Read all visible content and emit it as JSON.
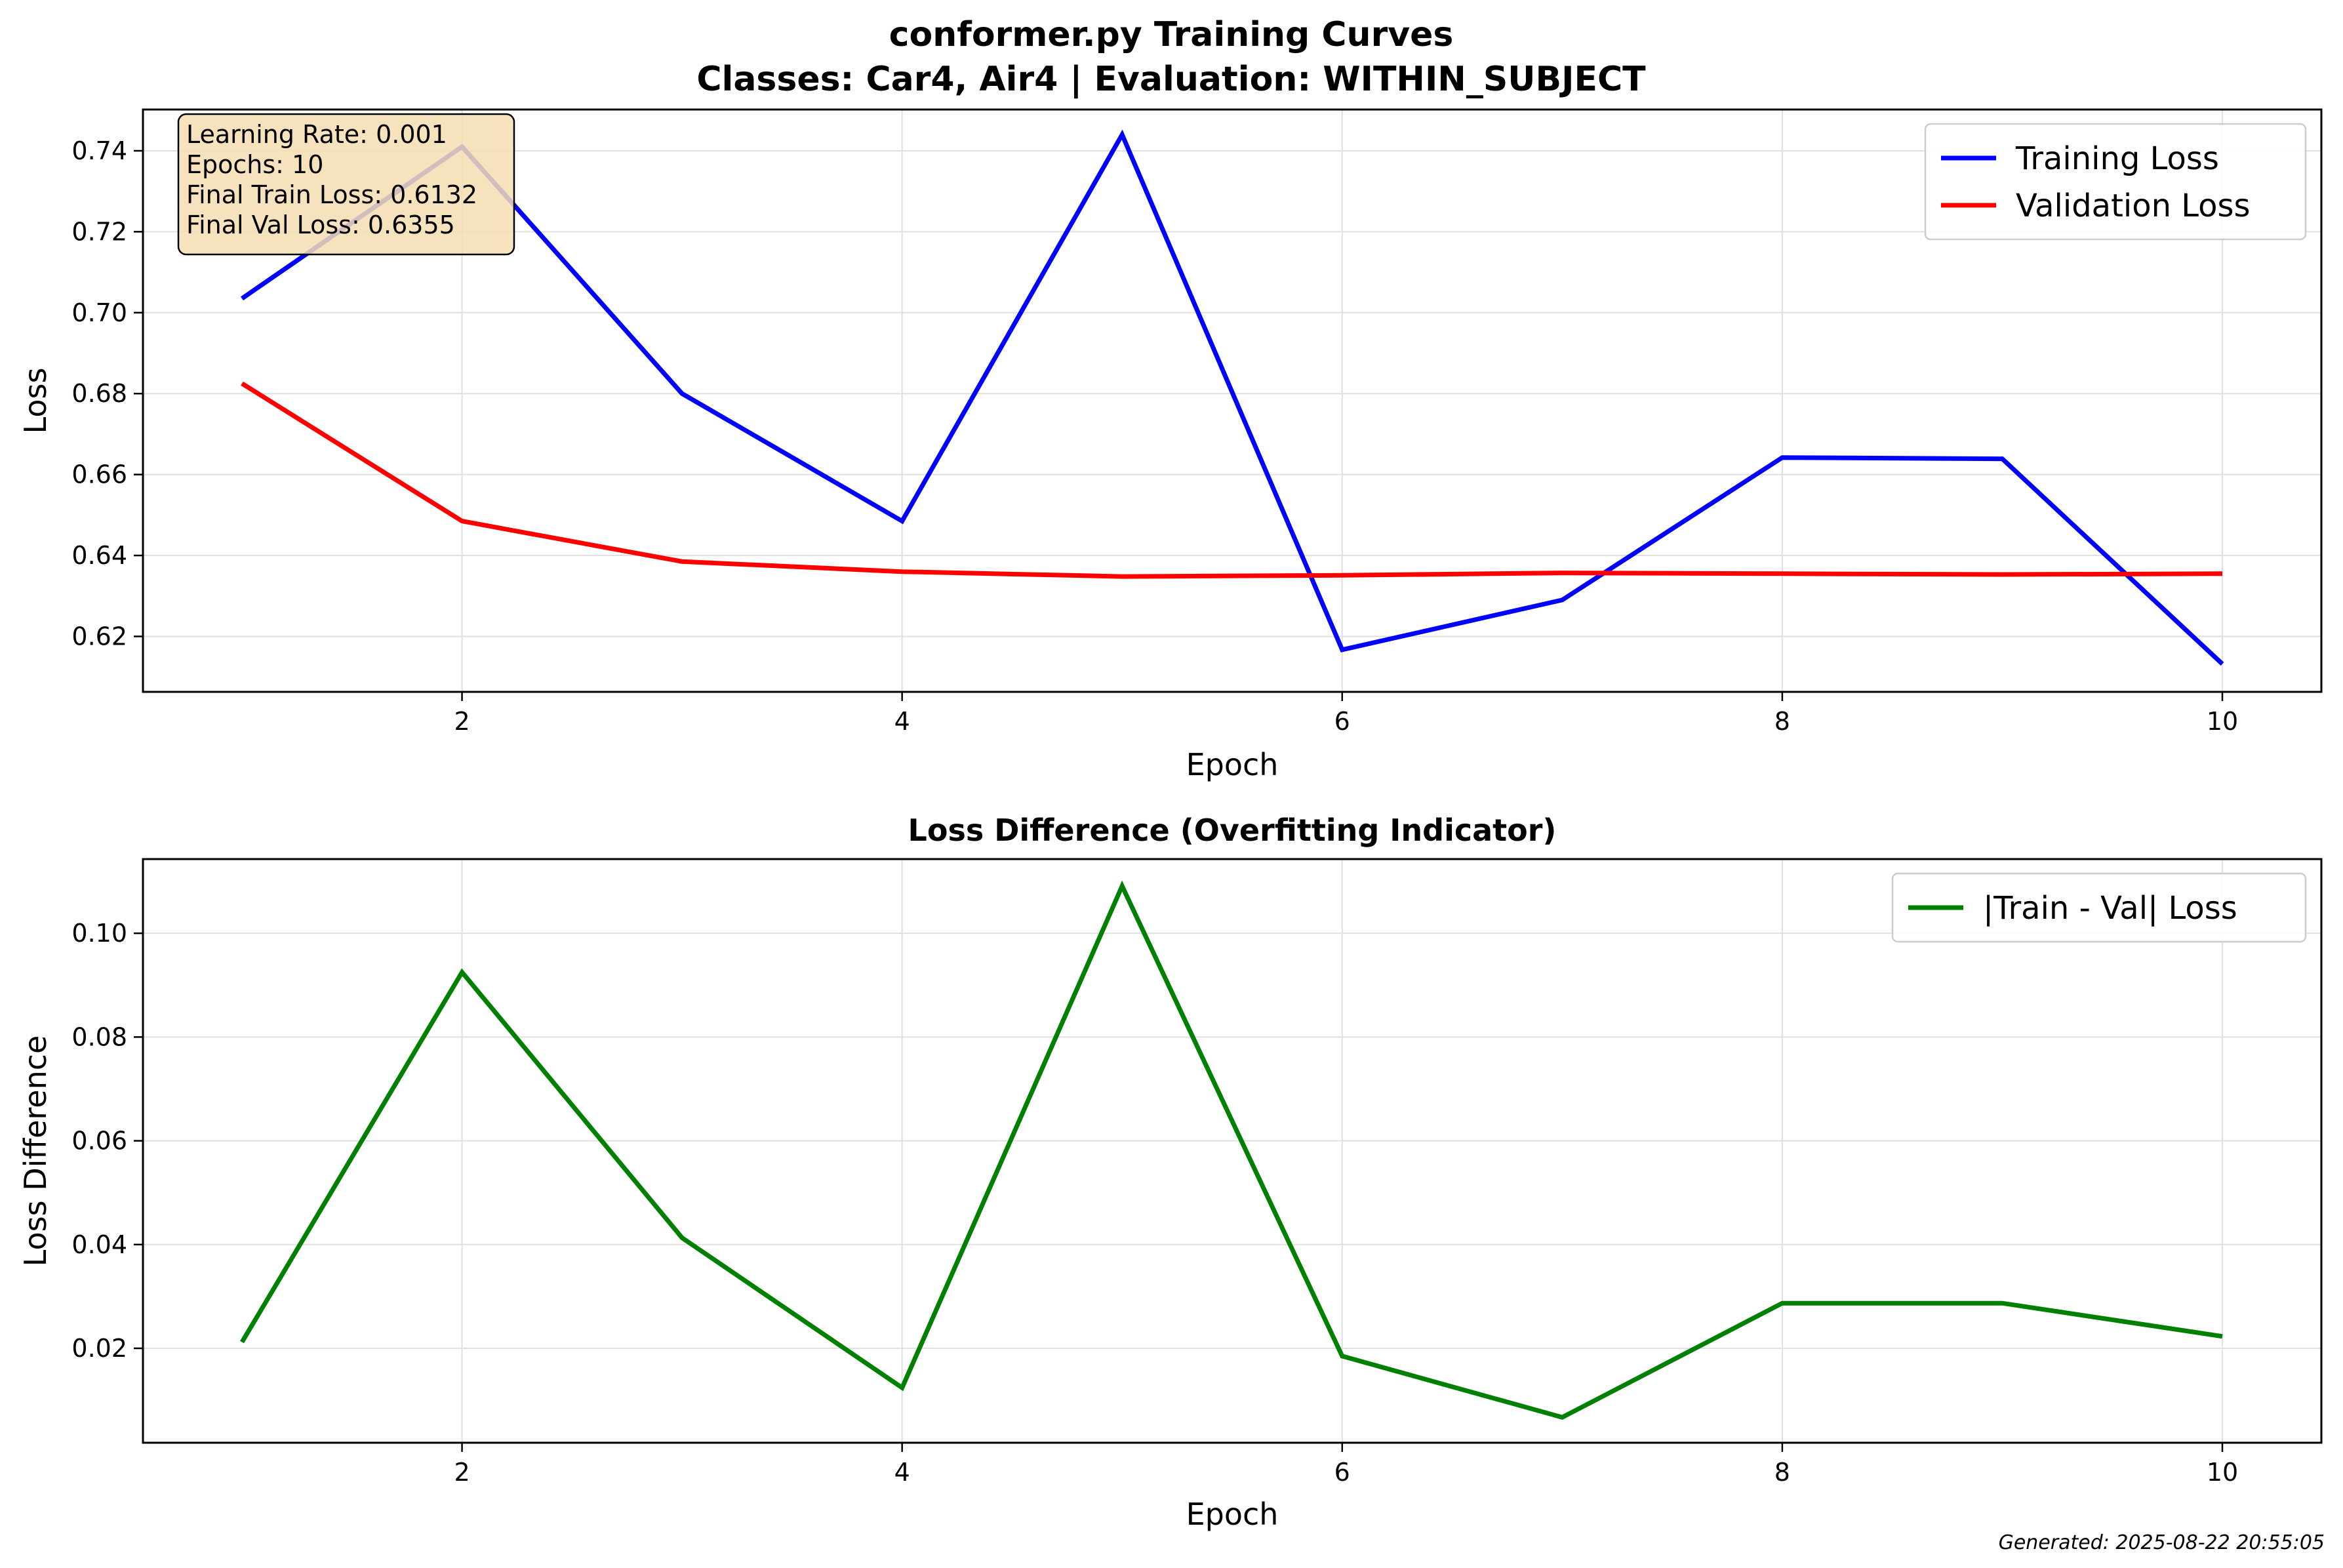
{
  "figure": {
    "title_line1": "conformer.py Training Curves",
    "title_line2": "Classes: Car4, Air4 | Evaluation: WITHIN_SUBJECT",
    "footer": "Generated: 2025-08-22 20:55:05"
  },
  "colors": {
    "training": "#0000ff",
    "validation": "#ff0000",
    "difference": "#008000",
    "info_box_fill": "#f5deb3",
    "grid": "#e0e0e0"
  },
  "chart_data": [
    {
      "type": "line",
      "title": "",
      "xlabel": "Epoch",
      "ylabel": "Loss",
      "x": [
        1,
        2,
        3,
        4,
        5,
        6,
        7,
        8,
        9,
        10
      ],
      "xlim": [
        0.55,
        10.45
      ],
      "ylim": [
        0.6063,
        0.7502
      ],
      "xticks": [
        2,
        4,
        6,
        8,
        10
      ],
      "yticks": [
        0.62,
        0.64,
        0.66,
        0.68,
        0.7,
        0.72,
        0.74
      ],
      "grid": true,
      "legend_position": "top-right",
      "series": [
        {
          "name": "Training Loss",
          "color": "#0000ff",
          "values": [
            0.7035,
            0.741,
            0.68,
            0.6485,
            0.744,
            0.6167,
            0.629,
            0.6642,
            0.6639,
            0.6132
          ]
        },
        {
          "name": "Validation Loss",
          "color": "#ff0000",
          "values": [
            0.6825,
            0.6485,
            0.6385,
            0.636,
            0.6348,
            0.6351,
            0.6357,
            0.6355,
            0.6353,
            0.6355
          ]
        }
      ],
      "annotation": {
        "lines": [
          "Learning Rate: 0.001",
          "Epochs: 10",
          "Final Train Loss: 0.6132",
          "Final Val Loss: 0.6355"
        ],
        "position": "top-left"
      }
    },
    {
      "type": "line",
      "title": "Loss Difference (Overfitting Indicator)",
      "xlabel": "Epoch",
      "ylabel": "Loss Difference",
      "x": [
        1,
        2,
        3,
        4,
        5,
        6,
        7,
        8,
        9,
        10
      ],
      "xlim": [
        0.55,
        10.45
      ],
      "ylim": [
        0.0018,
        0.1143
      ],
      "xticks": [
        2,
        4,
        6,
        8,
        10
      ],
      "yticks": [
        0.02,
        0.04,
        0.06,
        0.08,
        0.1
      ],
      "grid": true,
      "legend_position": "top-right",
      "series": [
        {
          "name": "|Train - Val| Loss",
          "color": "#008000",
          "values": [
            0.0212,
            0.0925,
            0.0413,
            0.0124,
            0.1091,
            0.0185,
            0.0067,
            0.0287,
            0.0287,
            0.0223
          ]
        }
      ]
    }
  ]
}
